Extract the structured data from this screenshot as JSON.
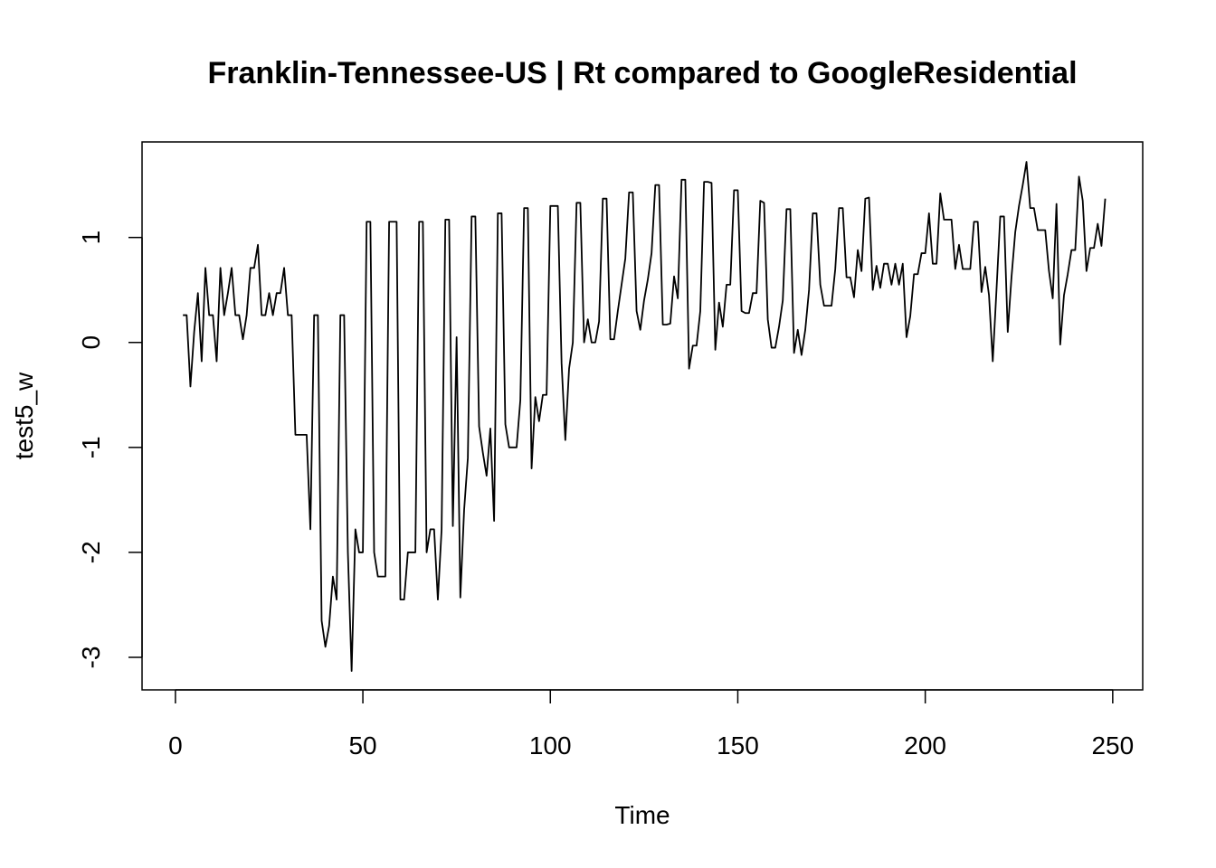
{
  "chart_data": {
    "type": "line",
    "title": "Franklin-Tennessee-US | Rt compared to GoogleResidential",
    "xlabel": "Time",
    "ylabel": "test5_w",
    "xlim": [
      -8.9,
      258
    ],
    "ylim": [
      -3.31,
      1.91
    ],
    "xticks": [
      0,
      50,
      100,
      150,
      200,
      250
    ],
    "yticks": [
      -3,
      -2,
      -1,
      0,
      1
    ],
    "x": [
      2,
      3,
      4,
      5,
      6,
      7,
      8,
      9,
      10,
      11,
      12,
      13,
      14,
      15,
      16,
      17,
      18,
      19,
      20,
      21,
      22,
      23,
      24,
      25,
      26,
      27,
      28,
      29,
      30,
      31,
      32,
      33,
      34,
      35,
      36,
      37,
      38,
      39,
      40,
      41,
      42,
      43,
      44,
      45,
      46,
      47,
      48,
      49,
      50,
      51,
      52,
      53,
      54,
      55,
      56,
      57,
      58,
      59,
      60,
      61,
      62,
      63,
      64,
      65,
      66,
      67,
      68,
      69,
      70,
      71,
      72,
      73,
      74,
      75,
      76,
      77,
      78,
      79,
      80,
      81,
      82,
      83,
      84,
      85,
      86,
      87,
      88,
      89,
      90,
      91,
      92,
      93,
      94,
      95,
      96,
      97,
      98,
      99,
      100,
      101,
      102,
      103,
      104,
      105,
      106,
      107,
      108,
      109,
      110,
      111,
      112,
      113,
      114,
      115,
      116,
      117,
      118,
      119,
      120,
      121,
      122,
      123,
      124,
      125,
      126,
      127,
      128,
      129,
      130,
      131,
      132,
      133,
      134,
      135,
      136,
      137,
      138,
      139,
      140,
      141,
      142,
      143,
      144,
      145,
      146,
      147,
      148,
      149,
      150,
      151,
      152,
      153,
      154,
      155,
      156,
      157,
      158,
      159,
      160,
      161,
      162,
      163,
      164,
      165,
      166,
      167,
      168,
      169,
      170,
      171,
      172,
      173,
      174,
      175,
      176,
      177,
      178,
      179,
      180,
      181,
      182,
      183,
      184,
      185,
      186,
      187,
      188,
      189,
      190,
      191,
      192,
      193,
      194,
      195,
      196,
      197,
      198,
      199,
      200,
      201,
      202,
      203,
      204,
      205,
      206,
      207,
      208,
      209,
      210,
      211,
      212,
      213,
      214,
      215,
      216,
      217,
      218,
      219,
      220,
      221,
      222,
      223,
      224,
      225,
      226,
      227,
      228,
      229,
      230,
      231,
      232,
      233,
      234,
      235,
      236,
      237,
      238,
      239,
      240,
      241,
      242,
      243,
      244,
      245,
      246,
      247,
      248
    ],
    "series": [
      {
        "color": "#000000",
        "values": [
          0.26,
          0.26,
          -0.42,
          0.1,
          0.47,
          -0.18,
          0.71,
          0.26,
          0.26,
          -0.18,
          0.71,
          0.26,
          0.47,
          0.71,
          0.26,
          0.26,
          0.03,
          0.26,
          0.71,
          0.71,
          0.93,
          0.26,
          0.26,
          0.47,
          0.26,
          0.47,
          0.47,
          0.71,
          0.26,
          0.26,
          -0.88,
          -0.88,
          -0.88,
          -0.88,
          -1.78,
          0.26,
          0.26,
          -2.65,
          -2.9,
          -2.7,
          -2.23,
          -2.45,
          0.26,
          0.26,
          -2.0,
          -3.13,
          -1.78,
          -2.0,
          -2.0,
          1.15,
          1.15,
          -2.0,
          -2.23,
          -2.23,
          -2.23,
          1.15,
          1.15,
          1.15,
          -2.45,
          -2.45,
          -2.0,
          -2.0,
          -2.0,
          1.15,
          1.15,
          -2.0,
          -1.78,
          -1.78,
          -2.45,
          -1.78,
          1.17,
          1.17,
          -1.75,
          0.05,
          -2.43,
          -1.6,
          -1.1,
          1.2,
          1.2,
          -0.8,
          -1.05,
          -1.27,
          -0.82,
          -1.7,
          1.23,
          1.23,
          -0.78,
          -1.0,
          -1.0,
          -1.0,
          -0.55,
          1.28,
          1.28,
          -1.2,
          -0.52,
          -0.75,
          -0.5,
          -0.5,
          1.3,
          1.3,
          1.3,
          -0.2,
          -0.93,
          -0.25,
          0.0,
          1.33,
          1.33,
          0.0,
          0.22,
          0.0,
          0.0,
          0.2,
          1.37,
          1.37,
          0.03,
          0.03,
          0.3,
          0.55,
          0.8,
          1.43,
          1.43,
          0.3,
          0.12,
          0.4,
          0.6,
          0.85,
          1.5,
          1.5,
          0.17,
          0.17,
          0.18,
          0.63,
          0.42,
          1.55,
          1.55,
          -0.25,
          -0.03,
          -0.03,
          0.3,
          1.53,
          1.53,
          1.52,
          -0.07,
          0.38,
          0.15,
          0.55,
          0.55,
          1.45,
          1.45,
          0.3,
          0.28,
          0.28,
          0.47,
          0.47,
          1.35,
          1.33,
          0.22,
          -0.05,
          -0.05,
          0.15,
          0.4,
          1.27,
          1.27,
          -0.1,
          0.12,
          -0.12,
          0.12,
          0.5,
          1.23,
          1.23,
          0.55,
          0.35,
          0.35,
          0.35,
          0.7,
          1.28,
          1.28,
          0.62,
          0.62,
          0.43,
          0.88,
          0.68,
          1.37,
          1.38,
          0.5,
          0.73,
          0.52,
          0.75,
          0.75,
          0.55,
          0.75,
          0.55,
          0.75,
          0.05,
          0.25,
          0.65,
          0.65,
          0.85,
          0.85,
          1.23,
          0.75,
          0.75,
          1.42,
          1.17,
          1.17,
          1.17,
          0.7,
          0.93,
          0.7,
          0.7,
          0.7,
          1.15,
          1.15,
          0.48,
          0.72,
          0.45,
          -0.18,
          0.5,
          1.2,
          1.2,
          0.1,
          0.62,
          1.05,
          1.3,
          1.5,
          1.72,
          1.28,
          1.28,
          1.07,
          1.07,
          1.07,
          0.68,
          0.42,
          1.32,
          -0.02,
          0.45,
          0.65,
          0.88,
          0.88,
          1.58,
          1.35,
          0.68,
          0.9,
          0.9,
          1.13,
          0.92,
          1.37
        ]
      }
    ]
  }
}
